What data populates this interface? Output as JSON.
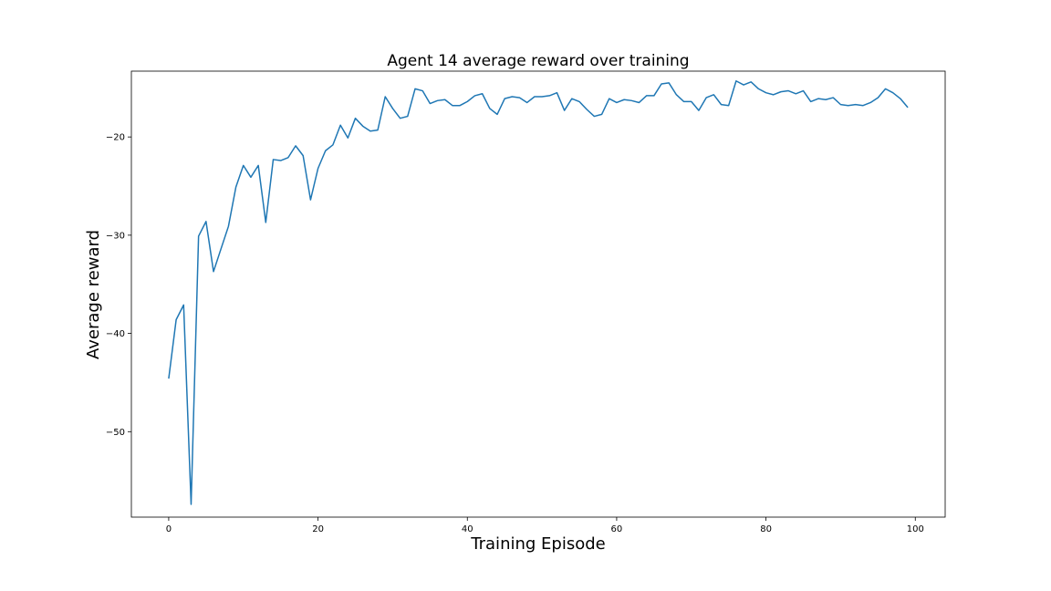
{
  "chart_data": {
    "type": "line",
    "title": "Agent 14 average reward over training",
    "xlabel": "Training Episode",
    "ylabel": "Average reward",
    "xlim": [
      -5,
      104
    ],
    "ylim": [
      -58.7,
      -13.3
    ],
    "xticks": [
      0,
      20,
      40,
      60,
      80,
      100
    ],
    "yticks": [
      -50,
      -40,
      -30,
      -20
    ],
    "grid": false,
    "series": [
      {
        "color": "#1f77b4",
        "x": [
          0,
          1,
          2,
          3,
          4,
          5,
          6,
          7,
          8,
          9,
          10,
          11,
          12,
          13,
          14,
          15,
          16,
          17,
          18,
          19,
          20,
          21,
          22,
          23,
          24,
          25,
          26,
          27,
          28,
          29,
          30,
          31,
          32,
          33,
          34,
          35,
          36,
          37,
          38,
          39,
          40,
          41,
          42,
          43,
          44,
          45,
          46,
          47,
          48,
          49,
          50,
          51,
          52,
          53,
          54,
          55,
          56,
          57,
          58,
          59,
          60,
          61,
          62,
          63,
          64,
          65,
          66,
          67,
          68,
          69,
          70,
          71,
          72,
          73,
          74,
          75,
          76,
          77,
          78,
          79,
          80,
          81,
          82,
          83,
          84,
          85,
          86,
          87,
          88,
          89,
          90,
          91,
          92,
          93,
          94,
          95,
          96,
          97,
          98,
          99
        ],
        "y": [
          -44.6,
          -38.6,
          -37.1,
          -57.4,
          -30.1,
          -28.6,
          -33.7,
          -31.4,
          -29.1,
          -25.1,
          -22.9,
          -24.1,
          -22.9,
          -28.7,
          -22.3,
          -22.4,
          -22.1,
          -20.9,
          -21.9,
          -26.4,
          -23.2,
          -21.4,
          -20.8,
          -18.8,
          -20.1,
          -18.1,
          -18.9,
          -19.4,
          -19.3,
          -15.9,
          -17.1,
          -18.1,
          -17.9,
          -15.1,
          -15.3,
          -16.6,
          -16.3,
          -16.2,
          -16.8,
          -16.8,
          -16.4,
          -15.8,
          -15.6,
          -17.1,
          -17.7,
          -16.1,
          -15.9,
          -16.0,
          -16.5,
          -15.9,
          -15.9,
          -15.8,
          -15.5,
          -17.3,
          -16.1,
          -16.4,
          -17.2,
          -17.9,
          -17.7,
          -16.1,
          -16.5,
          -16.2,
          -16.3,
          -16.5,
          -15.8,
          -15.8,
          -14.6,
          -14.5,
          -15.7,
          -16.4,
          -16.4,
          -17.3,
          -16.0,
          -15.7,
          -16.7,
          -16.8,
          -14.3,
          -14.7,
          -14.4,
          -15.1,
          -15.5,
          -15.7,
          -15.4,
          -15.3,
          -15.6,
          -15.3,
          -16.4,
          -16.1,
          -16.2,
          -16.0,
          -16.7,
          -16.8,
          -16.7,
          -16.8,
          -16.5,
          -16.0,
          -15.1,
          -15.5,
          -16.1,
          -17.0
        ]
      }
    ]
  }
}
